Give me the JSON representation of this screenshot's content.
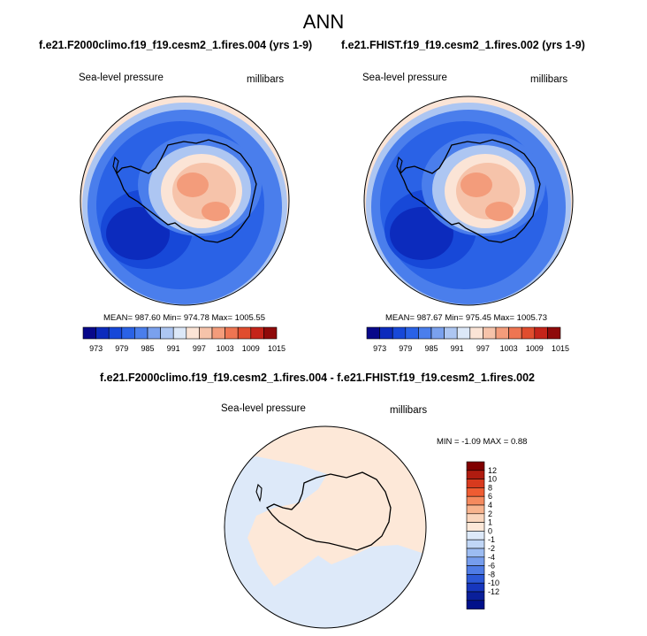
{
  "page": {
    "title": "ANN"
  },
  "panels": [
    {
      "case_title": "f.e21.F2000climo.f19_f19.cesm2_1.fires.004 (yrs 1-9)",
      "variable": "Sea-level pressure",
      "units": "millibars",
      "stats": "MEAN= 987.60  Min= 974.78  Max= 1005.55"
    },
    {
      "case_title": "f.e21.FHIST.f19_f19.cesm2_1.fires.002 (yrs 1-9)",
      "variable": "Sea-level pressure",
      "units": "millibars",
      "stats": "MEAN= 987.67  Min= 975.45  Max= 1005.73"
    }
  ],
  "colorbar": {
    "colors": [
      "#08088a",
      "#0c2bbd",
      "#1748d8",
      "#2a62e6",
      "#4a7eec",
      "#7aa1ee",
      "#adc6f2",
      "#dce8f8",
      "#fbe4d6",
      "#f6c3aa",
      "#f39c7b",
      "#ee7552",
      "#e04d2e",
      "#c5241a",
      "#8f0a0a"
    ],
    "tick_labels": [
      "973",
      "979",
      "985",
      "991",
      "997",
      "1003",
      "1009",
      "1015"
    ]
  },
  "difference": {
    "title": "f.e21.F2000climo.f19_f19.cesm2_1.fires.004 - f.e21.FHIST.f19_f19.cesm2_1.fires.002",
    "variable": "Sea-level pressure",
    "units": "millibars",
    "stats": "MIN =  -1.09 MAX =   0.88",
    "colorbar_colors": [
      "#800000",
      "#b01c10",
      "#d83a1e",
      "#ef5c32",
      "#f58a5e",
      "#f8b48e",
      "#fad6bd",
      "#fde8d8",
      "#dde9f9",
      "#c0d6f6",
      "#9cbcf2",
      "#769ded",
      "#4f7ce5",
      "#2c58d6",
      "#1737bd",
      "#0a1f9a",
      "#00108a"
    ],
    "colorbar_labels": [
      "12",
      "10",
      "8",
      "6",
      "4",
      "2",
      "1",
      "0",
      "-1",
      "-2",
      "-4",
      "-6",
      "-8",
      "-10",
      "-12"
    ]
  }
}
